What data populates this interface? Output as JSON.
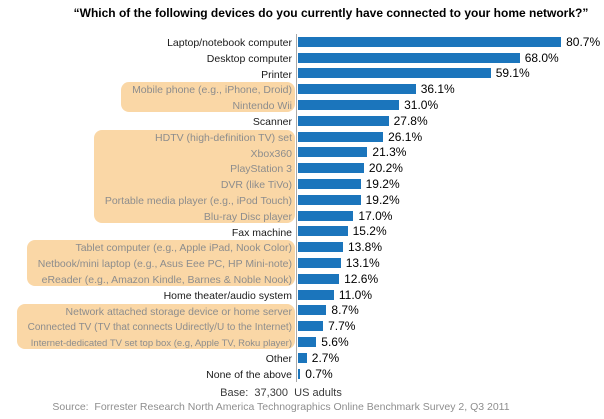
{
  "chart_data": {
    "type": "bar",
    "orientation": "horizontal",
    "title": "“Which of the following devices do you currently have connected to your home network?”",
    "xlabel": "",
    "ylabel": "",
    "xlim": [
      0,
      85
    ],
    "grid": false,
    "legend": false,
    "bar_color": "#1B75BC",
    "highlight_color": "#FAD7A6",
    "axis_color": "#A9A9A9",
    "items": [
      {
        "label": "Laptop/notebook computer",
        "value": 80.7,
        "display": "80.7%",
        "highlighted": false
      },
      {
        "label": "Desktop computer",
        "value": 68.0,
        "display": "68.0%",
        "highlighted": false
      },
      {
        "label": "Printer",
        "value": 59.1,
        "display": "59.1%",
        "highlighted": false
      },
      {
        "label": "Mobile phone (e.g., iPhone, Droid)",
        "value": 36.1,
        "display": "36.1%",
        "highlighted": true
      },
      {
        "label": "Nintendo Wii",
        "value": 31.0,
        "display": "31.0%",
        "highlighted": true
      },
      {
        "label": "Scanner",
        "value": 27.8,
        "display": "27.8%",
        "highlighted": false
      },
      {
        "label": "HDTV (high-definition TV) set",
        "value": 26.1,
        "display": "26.1%",
        "highlighted": true
      },
      {
        "label": "Xbox360",
        "value": 21.3,
        "display": "21.3%",
        "highlighted": true
      },
      {
        "label": "PlayStation 3",
        "value": 20.2,
        "display": "20.2%",
        "highlighted": true
      },
      {
        "label": "DVR (like TiVo)",
        "value": 19.2,
        "display": "19.2%",
        "highlighted": true
      },
      {
        "label": "Portable media player (e.g., iPod Touch)",
        "value": 19.2,
        "display": "19.2%",
        "highlighted": true
      },
      {
        "label": "Blu-ray Disc player",
        "value": 17.0,
        "display": "17.0%",
        "highlighted": true
      },
      {
        "label": "Fax machine",
        "value": 15.2,
        "display": "15.2%",
        "highlighted": false
      },
      {
        "label": "Tablet computer (e.g., Apple iPad, Nook Color)",
        "value": 13.8,
        "display": "13.8%",
        "highlighted": true
      },
      {
        "label": "Netbook/mini laptop (e.g., Asus Eee PC, HP Mini-note)",
        "value": 13.1,
        "display": "13.1%",
        "highlighted": true
      },
      {
        "label": "eReader (e.g., Amazon Kindle, Barnes & Noble Nook)",
        "value": 12.6,
        "display": "12.6%",
        "highlighted": true
      },
      {
        "label": "Home theater/audio system",
        "value": 11.0,
        "display": "11.0%",
        "highlighted": false
      },
      {
        "label": "Network attached storage device or home server",
        "value": 8.7,
        "display": "8.7%",
        "highlighted": true
      },
      {
        "label": "Connected TV (TV that connects Udirectly/U to the Internet)",
        "value": 7.7,
        "display": "7.7%",
        "highlighted": true
      },
      {
        "label": "Internet-dedicated TV set top box (e.g, Apple TV, Roku player)",
        "value": 5.6,
        "display": "5.6%",
        "highlighted": true
      },
      {
        "label": "Other",
        "value": 2.7,
        "display": "2.7%",
        "highlighted": false
      },
      {
        "label": "None of the above",
        "value": 0.7,
        "display": "0.7%",
        "highlighted": false
      }
    ]
  },
  "footer": {
    "base": "Base:  37,300  US adults",
    "source": "Source:  Forrester Research North America Technographics Online Benchmark Survey 2, Q3 2011"
  }
}
